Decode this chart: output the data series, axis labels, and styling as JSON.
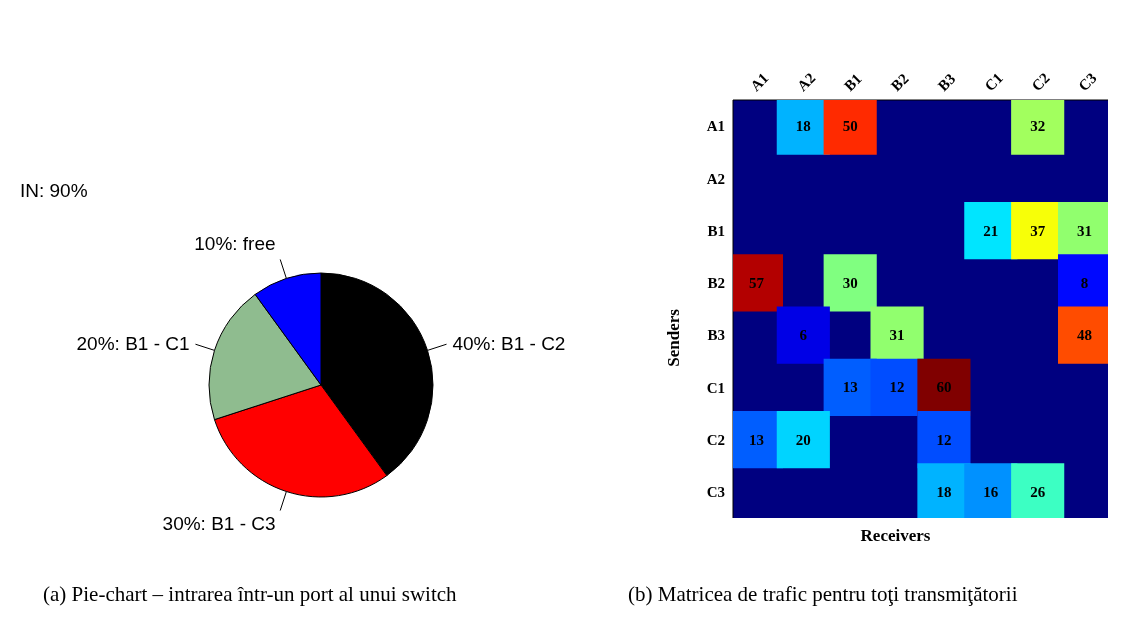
{
  "chart_data": [
    {
      "type": "pie",
      "categories": [
        "40%: B1 - C2",
        "30%: B1 - C3",
        "20%: B1 - C1",
        "10%: free"
      ],
      "values": [
        40,
        30,
        20,
        10
      ],
      "colors": [
        "#000000",
        "#ff0000",
        "#8fbc8f",
        "#0000ff"
      ],
      "annotations": [
        "IN: 90%",
        "(a) Pie-chart – intrarea într-un port al unui switch"
      ]
    },
    {
      "type": "heatmap",
      "data_labels": true,
      "xlabel": "Receivers",
      "ylabel": "Senders",
      "categories": [
        "A1",
        "A2",
        "B1",
        "B2",
        "B3",
        "C1",
        "C2",
        "C3"
      ],
      "y_categories": [
        "A1",
        "A2",
        "B1",
        "B2",
        "B3",
        "C1",
        "C2",
        "C3"
      ],
      "cells": [
        [
          null,
          18,
          50,
          null,
          null,
          null,
          32,
          null
        ],
        [
          null,
          null,
          null,
          null,
          null,
          null,
          null,
          null
        ],
        [
          null,
          null,
          null,
          null,
          null,
          21,
          37,
          31
        ],
        [
          57,
          null,
          30,
          null,
          null,
          null,
          null,
          8
        ],
        [
          null,
          6,
          null,
          31,
          null,
          null,
          null,
          48
        ],
        [
          null,
          null,
          13,
          12,
          60,
          null,
          null,
          null
        ],
        [
          13,
          20,
          null,
          null,
          12,
          null,
          null,
          null
        ],
        [
          null,
          null,
          null,
          null,
          18,
          16,
          26,
          null
        ]
      ],
      "annotations": [
        "(b) Matricea de trafic pentru toţi transmiţătorii"
      ]
    }
  ]
}
